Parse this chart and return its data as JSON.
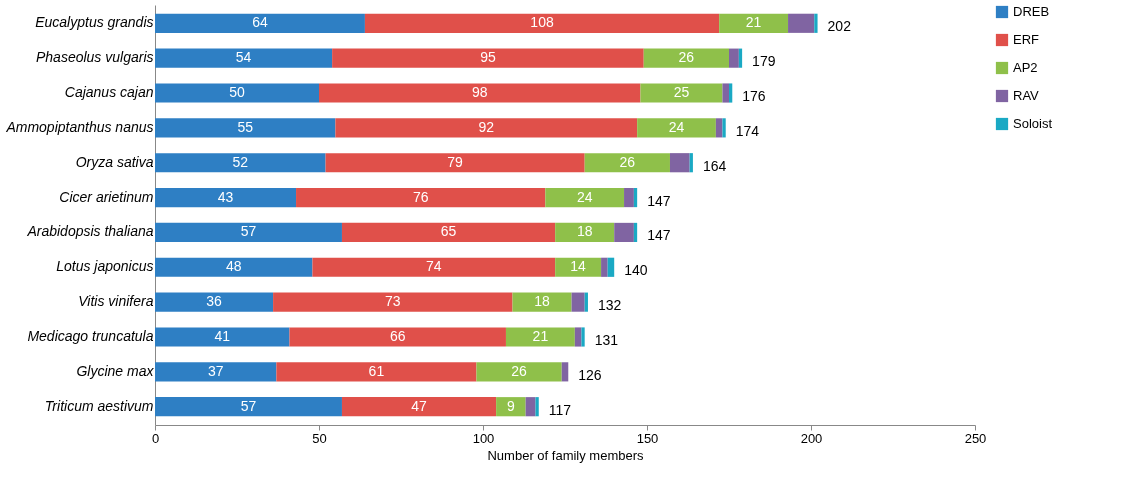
{
  "chart_data": {
    "type": "bar",
    "orientation": "horizontal",
    "stacked": true,
    "xlabel": "Number of family members",
    "categories": [
      "Eucalyptus grandis",
      "Phaseolus vulgaris",
      "Cajanus cajan",
      "Ammopiptanthus nanus",
      "Oryza sativa",
      "Cicer arietinum",
      "Arabidopsis thaliana",
      "Lotus japonicus",
      "Vitis vinifera",
      "Medicago truncatula",
      "Glycine max",
      "Triticum aestivum"
    ],
    "series": [
      {
        "name": "DREB",
        "color": "#2e7fc4",
        "values": [
          64,
          54,
          50,
          55,
          52,
          43,
          57,
          48,
          36,
          41,
          37,
          57
        ],
        "value_labels": [
          "64",
          "54",
          "50",
          "55",
          "52",
          "43",
          "57",
          "48",
          "36",
          "41",
          "37",
          "57"
        ]
      },
      {
        "name": "ERF",
        "color": "#e0504a",
        "values": [
          108,
          95,
          98,
          92,
          79,
          76,
          65,
          74,
          73,
          66,
          61,
          47
        ],
        "value_labels": [
          "108",
          "95",
          "98",
          "92",
          "79",
          "76",
          "65",
          "74",
          "73",
          "66",
          "61",
          "47"
        ]
      },
      {
        "name": "AP2",
        "color": "#8fc04a",
        "values": [
          21,
          26,
          25,
          24,
          26,
          24,
          18,
          14,
          18,
          21,
          26,
          9
        ],
        "value_labels": [
          "21",
          "26",
          "25",
          "24",
          "26",
          "24",
          "18",
          "14",
          "18",
          "21",
          "26",
          "9"
        ]
      },
      {
        "name": "RAV",
        "color": "#8064a2",
        "values": [
          8,
          3,
          2,
          2,
          6,
          3,
          6,
          2,
          4,
          2,
          2,
          3
        ]
      },
      {
        "name": "Soloist",
        "color": "#1aa9c4",
        "values": [
          1,
          1,
          1,
          1,
          1,
          1,
          1,
          2,
          1,
          1,
          0,
          1
        ]
      }
    ],
    "totals": [
      "202",
      "179",
      "176",
      "174",
      "164",
      "147",
      "147",
      "140",
      "132",
      "131",
      "126",
      "117"
    ],
    "xlim": [
      0,
      250
    ],
    "xticks": [
      0,
      50,
      100,
      150,
      200,
      250
    ],
    "grid": false,
    "legend": "right"
  }
}
